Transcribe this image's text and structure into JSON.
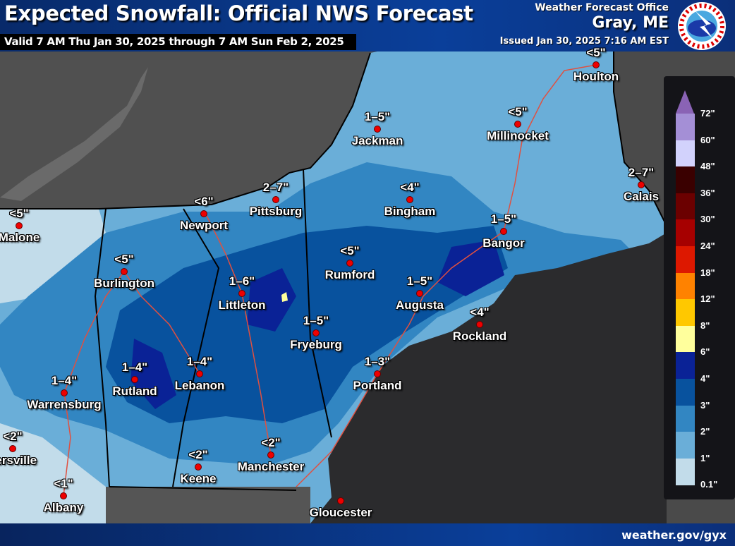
{
  "header": {
    "title": "Expected Snowfall: Official NWS Forecast",
    "valid": "Valid 7 AM Thu Jan 30, 2025 through 7 AM Sun Feb 2, 2025",
    "office_label": "Weather Forecast Office",
    "office_city": "Gray, ME",
    "issued": "Issued Jan 30, 2025 7:16 AM EST",
    "logo_text": "NATIONAL WEATHER SERVICE"
  },
  "footer": {
    "url": "weather.gov/gyx"
  },
  "legend": {
    "labels": [
      "72\"",
      "60\"",
      "48\"",
      "36\"",
      "30\"",
      "24\"",
      "18\"",
      "12\"",
      "8\"",
      "6\"",
      "4\"",
      "3\"",
      "2\"",
      "1\"",
      "0.1\""
    ],
    "colors": [
      "#8a63b5",
      "#a48fd6",
      "#d2d2fc",
      "#3a0000",
      "#6b0000",
      "#a60000",
      "#dd1800",
      "#ff8200",
      "#ffc800",
      "#ffff9c",
      "#0a2296",
      "#08529e",
      "#3286c2",
      "#6aaed8",
      "#c2dcea"
    ]
  },
  "cities": [
    {
      "name": "Houlton",
      "value": "<5\""
    },
    {
      "name": "Jackman",
      "value": "1–5\""
    },
    {
      "name": "Millinocket",
      "value": "<5\""
    },
    {
      "name": "Calais",
      "value": "2–7\""
    },
    {
      "name": "Pittsburg",
      "value": "2–7\""
    },
    {
      "name": "Bingham",
      "value": "<4\""
    },
    {
      "name": "Newport",
      "value": "<6\""
    },
    {
      "name": "Malone",
      "value": "<5\""
    },
    {
      "name": "Bangor",
      "value": "1–5\""
    },
    {
      "name": "Rumford",
      "value": "<5\""
    },
    {
      "name": "Burlington",
      "value": "<5\""
    },
    {
      "name": "Littleton",
      "value": "1–6\""
    },
    {
      "name": "Augusta",
      "value": "1–5\""
    },
    {
      "name": "Fryeburg",
      "value": "1–5\""
    },
    {
      "name": "Rockland",
      "value": "<4\""
    },
    {
      "name": "Portland",
      "value": "1–3\""
    },
    {
      "name": "Rutland",
      "value": "1–4\""
    },
    {
      "name": "Lebanon",
      "value": "1–4\""
    },
    {
      "name": "Warrensburg",
      "value": "1–4\""
    },
    {
      "name": "versville",
      "value": "<2\""
    },
    {
      "name": "Keene",
      "value": "<2\""
    },
    {
      "name": "Manchester",
      "value": "<2\""
    },
    {
      "name": "Albany",
      "value": "<1\""
    },
    {
      "name": "Gloucester",
      "value": ""
    }
  ]
}
